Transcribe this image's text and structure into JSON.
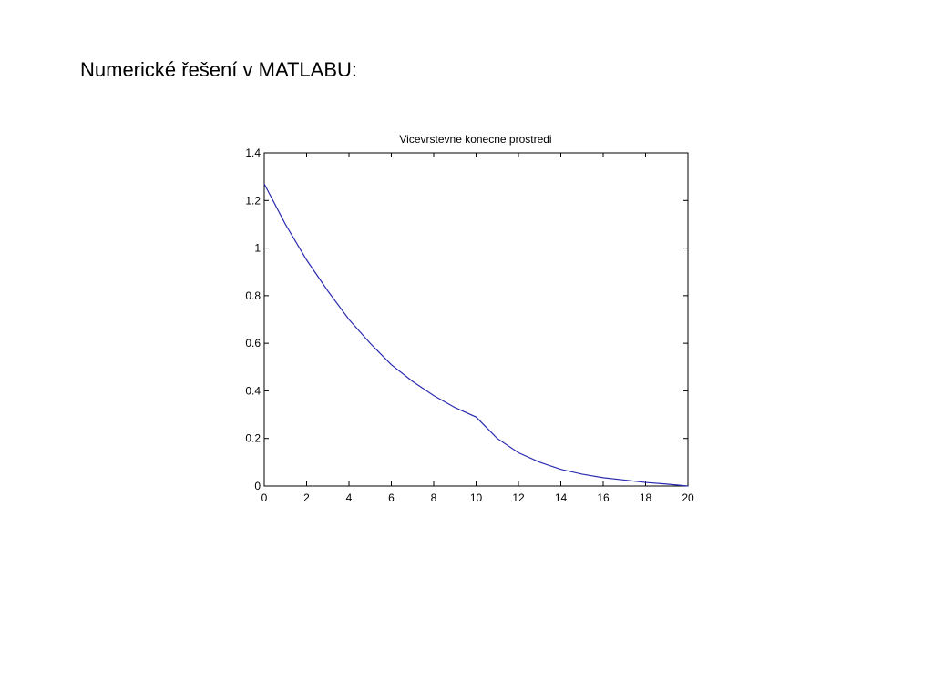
{
  "slide_title": "Numerické řešení v MATLABU:",
  "chart_data": {
    "type": "line",
    "title": "Vicevrstevne konecne prostredi",
    "x": [
      0,
      1,
      2,
      3,
      4,
      5,
      6,
      7,
      8,
      9,
      10,
      11,
      12,
      13,
      14,
      15,
      16,
      17,
      18,
      19,
      20
    ],
    "series": [
      {
        "color": "#2b2bb0",
        "values": [
          1.27,
          1.1,
          0.95,
          0.82,
          0.7,
          0.6,
          0.51,
          0.44,
          0.38,
          0.33,
          0.29,
          0.2,
          0.14,
          0.1,
          0.07,
          0.05,
          0.035,
          0.025,
          0.015,
          0.008,
          0
        ]
      }
    ],
    "xlim": [
      0,
      20
    ],
    "xticks": [
      0,
      2,
      4,
      6,
      8,
      10,
      12,
      14,
      16,
      18,
      20
    ],
    "ylim": [
      0,
      1.4
    ],
    "yticks": [
      0,
      0.2,
      0.4,
      0.6,
      0.8,
      1,
      1.2,
      1.4
    ],
    "grid": false
  }
}
